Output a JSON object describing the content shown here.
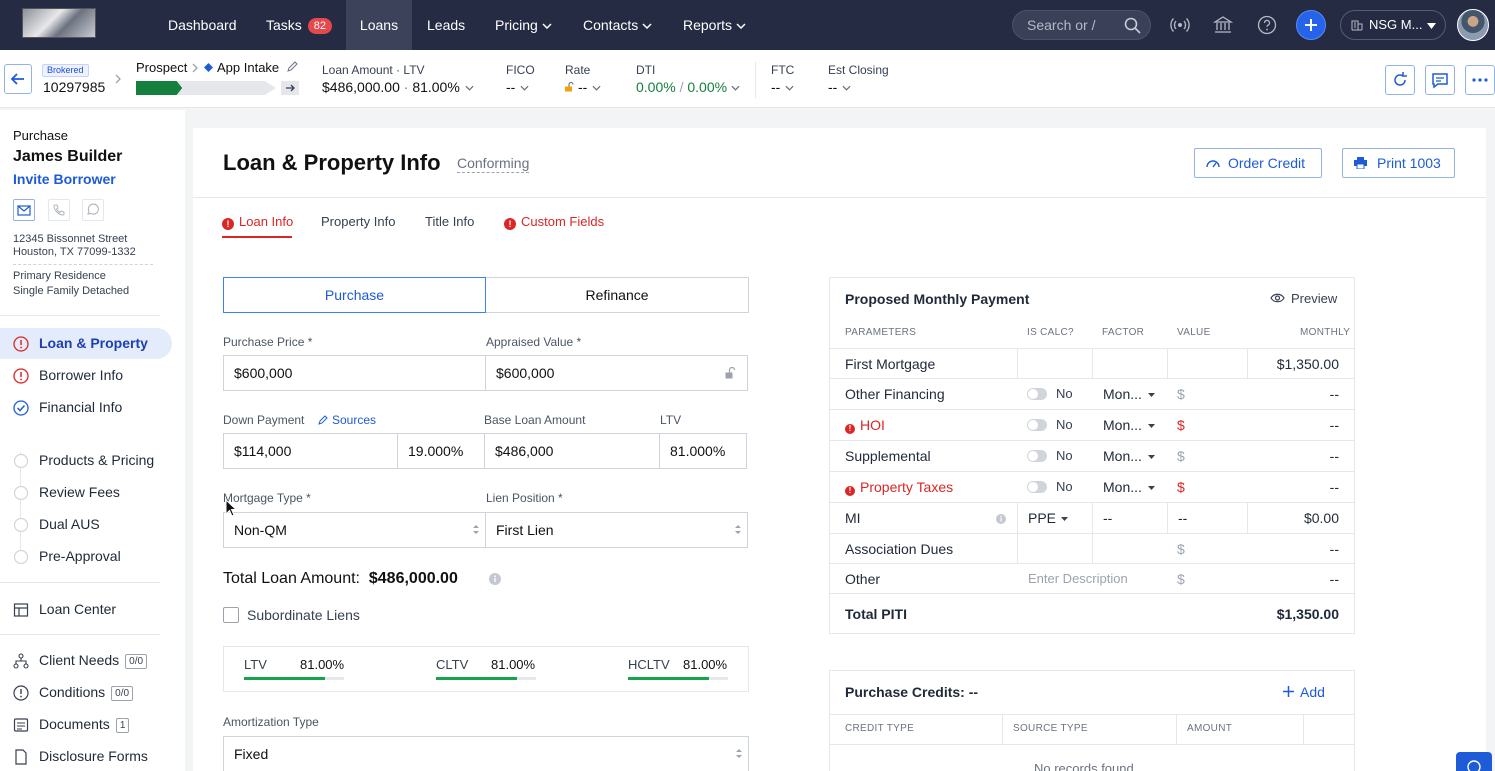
{
  "topnav": {
    "items": [
      {
        "label": "Dashboard"
      },
      {
        "label": "Tasks",
        "badge": "82"
      },
      {
        "label": "Loans"
      },
      {
        "label": "Leads"
      },
      {
        "label": "Pricing"
      },
      {
        "label": "Contacts"
      },
      {
        "label": "Reports"
      }
    ],
    "search_placeholder": "Search or /",
    "org_label": "NSG M..."
  },
  "loanbar": {
    "brokered": "Brokered",
    "loan_number": "10297985",
    "stage": "Prospect",
    "substage": "App Intake",
    "progress": 0.33,
    "loan_amount_label": "Loan Amount",
    "ltv_label": "LTV",
    "loan_amount": "$486,000.00",
    "ltv_value": "81.00%",
    "fico_label": "FICO",
    "fico_value": "--",
    "rate_label": "Rate",
    "rate_value": "--",
    "dti_label": "DTI",
    "dti_front": "0.00%",
    "dti_back": "0.00%",
    "ftc_label": "FTC",
    "ftc_value": "--",
    "closing_label": "Est Closing",
    "closing_value": "--"
  },
  "borrower": {
    "purpose": "Purchase",
    "name": "James Builder",
    "invite": "Invite Borrower",
    "address1": "12345 Bissonnet Street",
    "address2": "Houston, TX 77099-1332",
    "occupancy": "Primary Residence",
    "property_type": "Single Family Detached"
  },
  "sidebar": {
    "items": [
      {
        "label": "Loan & Property"
      },
      {
        "label": "Borrower Info"
      },
      {
        "label": "Financial Info"
      },
      {
        "label": "Products & Pricing"
      },
      {
        "label": "Review Fees"
      },
      {
        "label": "Dual AUS"
      },
      {
        "label": "Pre-Approval"
      },
      {
        "label": "Loan Center"
      },
      {
        "label": "Client Needs",
        "count": "0/0"
      },
      {
        "label": "Conditions",
        "count": "0/0"
      },
      {
        "label": "Documents",
        "count": "1"
      },
      {
        "label": "Disclosure Forms"
      }
    ]
  },
  "page": {
    "title": "Loan & Property Info",
    "subtitle": "Conforming",
    "order_credit": "Order Credit",
    "print": "Print 1003",
    "tabs": [
      {
        "label": "Loan Info"
      },
      {
        "label": "Property Info"
      },
      {
        "label": "Title Info"
      },
      {
        "label": "Custom Fields"
      }
    ]
  },
  "form": {
    "purpose_purchase": "Purchase",
    "purpose_refinance": "Refinance",
    "purchase_price_label": "Purchase Price *",
    "purchase_price": "$600,000",
    "appraised_label": "Appraised Value *",
    "appraised": "$600,000",
    "down_label": "Down Payment",
    "sources": "Sources",
    "down_amount": "$114,000",
    "down_pct": "19.000%",
    "base_label": "Base Loan Amount",
    "base_amount": "$486,000",
    "ltv_label": "LTV",
    "ltv": "81.000%",
    "mortgage_type_label": "Mortgage Type *",
    "mortgage_type": "Non-QM",
    "lien_label": "Lien Position *",
    "lien": "First Lien",
    "total_label": "Total Loan Amount:",
    "total_value": "$486,000.00",
    "subordinate": "Subordinate Liens",
    "ratios": [
      {
        "label": "LTV",
        "value": "81.00%",
        "pct": 0.81
      },
      {
        "label": "CLTV",
        "value": "81.00%",
        "pct": 0.81
      },
      {
        "label": "HCLTV",
        "value": "81.00%",
        "pct": 0.81
      }
    ],
    "amort_label": "Amortization Type",
    "amort": "Fixed"
  },
  "payment": {
    "title": "Proposed Monthly Payment",
    "preview": "Preview",
    "headers": [
      "PARAMETERS",
      "IS CALC?",
      "FACTOR",
      "VALUE",
      "MONTHLY"
    ],
    "rows": [
      {
        "name": "First Mortgage",
        "monthly": "$1,350.00"
      },
      {
        "name": "Other Financing",
        "calc": "No",
        "factor": "Mon...",
        "value": "$",
        "monthly": "--"
      },
      {
        "name": "HOI",
        "calc": "No",
        "factor": "Mon...",
        "value": "$",
        "monthly": "--"
      },
      {
        "name": "Supplemental",
        "calc": "No",
        "factor": "Mon...",
        "value": "$",
        "monthly": "--"
      },
      {
        "name": "Property Taxes",
        "calc": "No",
        "factor": "Mon...",
        "value": "$",
        "monthly": "--"
      },
      {
        "name": "MI",
        "calc": "PPE",
        "factor": "--",
        "value": "--",
        "monthly": "$0.00"
      },
      {
        "name": "Association Dues",
        "value": "$",
        "monthly": "--"
      },
      {
        "name": "Other",
        "desc_placeholder": "Enter Description",
        "value": "$",
        "monthly": "--"
      }
    ],
    "total_label": "Total PITI",
    "total_value": "$1,350.00"
  },
  "credits": {
    "title": "Purchase Credits:",
    "title_value": "--",
    "add": "Add",
    "headers": [
      "CREDIT TYPE",
      "SOURCE TYPE",
      "AMOUNT"
    ],
    "empty": "No records found"
  }
}
